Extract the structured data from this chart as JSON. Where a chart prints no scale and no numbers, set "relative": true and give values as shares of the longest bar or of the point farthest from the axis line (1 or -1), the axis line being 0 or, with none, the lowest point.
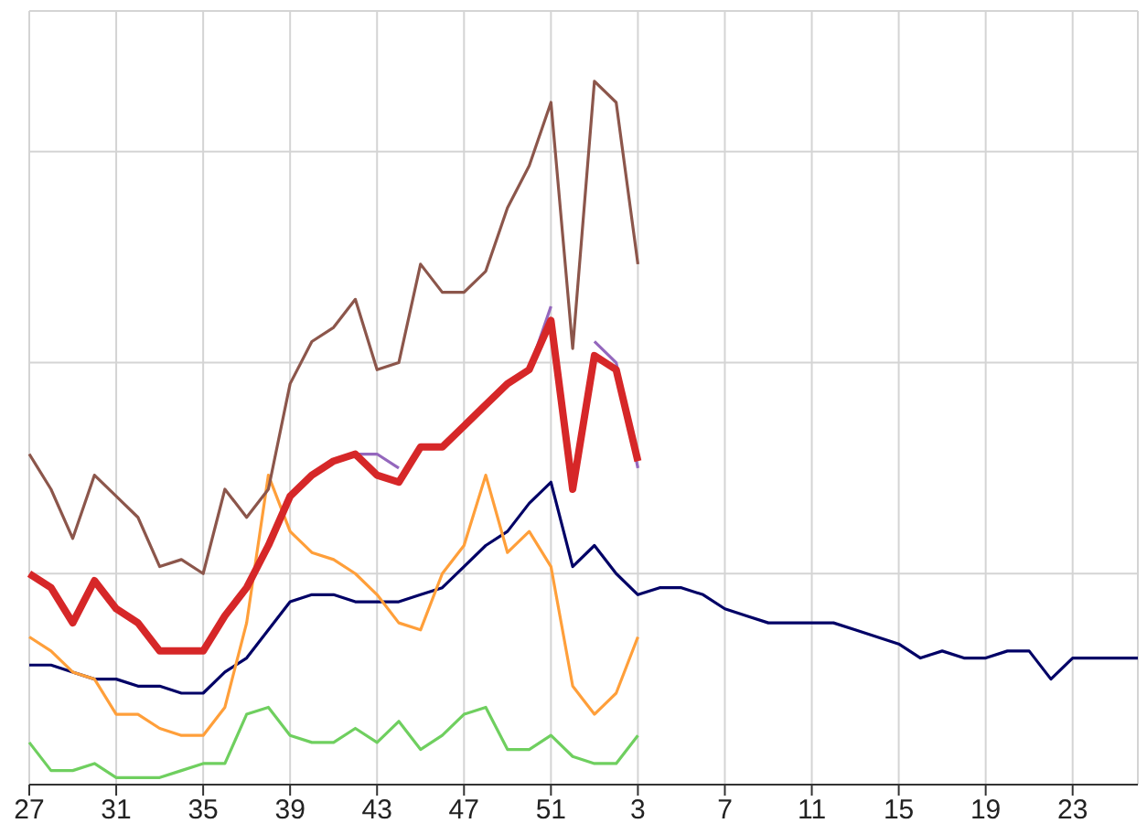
{
  "chart_data": {
    "type": "line",
    "relative": true,
    "grid": true,
    "marker": "none",
    "line_style": "solid",
    "categories": [
      "27",
      null,
      null,
      null,
      "31",
      null,
      null,
      null,
      "35",
      null,
      null,
      null,
      "39",
      null,
      null,
      null,
      "43",
      null,
      null,
      null,
      "47",
      null,
      null,
      null,
      "51",
      null,
      null,
      null,
      "3",
      null,
      null,
      null,
      "7",
      null,
      null,
      null,
      "11",
      null,
      null,
      null,
      "15",
      null,
      null,
      null,
      "19",
      null,
      null,
      null,
      "23",
      null,
      null,
      null
    ],
    "series": [
      {
        "color": "#000066",
        "values": [
          0.17,
          0.17,
          0.16,
          0.15,
          0.15,
          0.14,
          0.14,
          0.13,
          0.13,
          0.16,
          0.18,
          0.22,
          0.26,
          0.27,
          0.27,
          0.26,
          0.26,
          0.26,
          0.27,
          0.28,
          0.31,
          0.34,
          0.36,
          0.4,
          0.43,
          0.31,
          0.34,
          0.3,
          0.27,
          0.28,
          0.28,
          0.27,
          0.25,
          0.24,
          0.23,
          0.23,
          0.23,
          0.23,
          0.22,
          0.21,
          0.2,
          0.18,
          0.19,
          0.18,
          0.18,
          0.19,
          0.19,
          0.15,
          0.18,
          0.18,
          0.18,
          0.18
        ]
      },
      {
        "color": "#6fcf5f",
        "values": [
          0.06,
          0.02,
          0.02,
          0.03,
          0.01,
          0.01,
          0.01,
          0.02,
          0.03,
          0.03,
          0.1,
          0.11,
          0.07,
          0.06,
          0.06,
          0.08,
          0.06,
          0.09,
          0.05,
          0.07,
          0.1,
          0.11,
          0.05,
          0.05,
          0.07,
          0.04,
          0.03,
          0.03,
          0.07,
          null,
          null,
          null,
          null,
          null,
          null,
          null,
          null,
          null,
          null,
          null,
          null,
          null,
          null,
          null,
          null,
          null,
          null,
          null,
          null,
          null,
          null,
          null
        ]
      },
      {
        "color": "#ff9f3a",
        "values": [
          0.21,
          0.19,
          0.16,
          0.15,
          0.1,
          0.1,
          0.08,
          0.07,
          0.07,
          0.11,
          0.23,
          0.44,
          0.36,
          0.33,
          0.32,
          0.3,
          0.27,
          0.23,
          0.22,
          0.3,
          0.34,
          0.44,
          0.33,
          0.36,
          0.31,
          0.14,
          0.1,
          0.13,
          0.21,
          null,
          null,
          null,
          null,
          null,
          null,
          null,
          null,
          null,
          null,
          null,
          null,
          null,
          null,
          null,
          null,
          null,
          null,
          null,
          null,
          null,
          null,
          null
        ]
      },
      {
        "color": "#8c564b",
        "values": [
          0.47,
          0.42,
          0.35,
          0.44,
          0.41,
          0.38,
          0.31,
          0.32,
          0.3,
          0.42,
          0.38,
          0.42,
          0.57,
          0.63,
          0.65,
          0.69,
          0.59,
          0.6,
          0.74,
          0.7,
          0.7,
          0.73,
          0.82,
          0.88,
          0.97,
          0.62,
          1,
          0.97,
          0.74,
          null,
          null,
          null,
          null,
          null,
          null,
          null,
          null,
          null,
          null,
          null,
          null,
          null,
          null,
          null,
          null,
          null,
          null,
          null,
          null,
          null,
          null,
          null
        ]
      },
      {
        "color": "#9467bd",
        "values": [
          null,
          null,
          null,
          null,
          null,
          null,
          null,
          null,
          null,
          null,
          null,
          null,
          null,
          null,
          null,
          0.47,
          0.47,
          0.45,
          null,
          null,
          null,
          null,
          null,
          0.59,
          0.68,
          null,
          0.63,
          0.6,
          0.45,
          null,
          null,
          null,
          null,
          null,
          null,
          null,
          null,
          null,
          null,
          null,
          null,
          null,
          null,
          null,
          null,
          null,
          null,
          null,
          null,
          null,
          null,
          null
        ]
      },
      {
        "color": "#d62728",
        "values": [
          0.3,
          0.28,
          0.23,
          0.29,
          0.25,
          0.23,
          0.19,
          0.19,
          0.19,
          0.24,
          0.28,
          0.34,
          0.41,
          0.44,
          0.46,
          0.47,
          0.44,
          0.43,
          0.48,
          0.48,
          0.51,
          0.54,
          0.57,
          0.59,
          0.66,
          0.42,
          0.61,
          0.59,
          0.46,
          null,
          null,
          null,
          null,
          null,
          null,
          null,
          null,
          null,
          null,
          null,
          null,
          null,
          null,
          null,
          null,
          null,
          null,
          null,
          null,
          null,
          null,
          null
        ]
      }
    ]
  }
}
